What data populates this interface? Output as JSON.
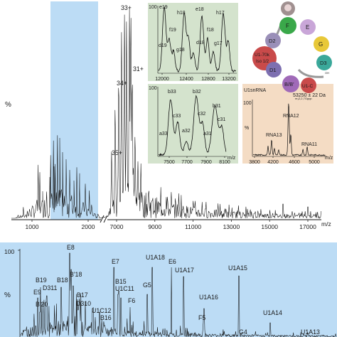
{
  "chart_data": [
    {
      "type": "line",
      "panel": "overview",
      "y_label": "%",
      "x_unit": "m/z",
      "x_ticks_left": [
        "1000",
        "2000"
      ],
      "x_ticks_right": [
        "7000",
        "9000",
        "11000",
        "13000",
        "15000",
        "17000"
      ],
      "peak_labels": [
        "33+",
        "31+",
        "34+",
        "35+"
      ],
      "highlight_region": [
        1380,
        2460
      ],
      "colors": {
        "highlight": "#bcdcf5",
        "trace": "#111111"
      }
    },
    {
      "type": "line",
      "panel": "inset-a",
      "y_top_label": "100",
      "x_ticks": [
        "12000",
        "12400",
        "12800",
        "13200"
      ],
      "peak_labels": [
        "e19",
        "h18",
        "e18",
        "h17",
        "f19",
        "f18",
        "d19",
        "g18",
        "d18",
        "g17"
      ],
      "colors": {
        "background": "#d4e3cd"
      }
    },
    {
      "type": "line",
      "panel": "inset-b",
      "y_top_label": "100",
      "x_unit": "m/z",
      "x_ticks": [
        "7500",
        "7700",
        "7900",
        "8100"
      ],
      "peak_labels": [
        "b33",
        "b32",
        "b31",
        "c33",
        "c32",
        "c31",
        "a33",
        "a32",
        "a31"
      ],
      "colors": {
        "background": "#d4e3cd"
      }
    },
    {
      "type": "line",
      "panel": "inset-c",
      "title": "U1snRNA",
      "mass_label": "53250 ± 22 Da",
      "y_top_label": "100",
      "y_label": "%",
      "x_unit": "m/z",
      "x_ticks": [
        "3800",
        "4200",
        "4600",
        "5000"
      ],
      "peak_labels": [
        "RNA12",
        "RNA13",
        "RNA11"
      ],
      "colors": {
        "background": "#f4dcc4"
      }
    },
    {
      "type": "line",
      "panel": "bottom",
      "y_top_label": "100",
      "y_label": "%",
      "peak_labels": [
        "E8",
        "E7",
        "E6",
        "U1A18",
        "U1A17",
        "U1A15",
        "B19",
        "B18",
        "B'18",
        "E9",
        "D311",
        "B17",
        "D310",
        "B'20",
        "U1C12",
        "B16",
        "B15",
        "U1C11",
        "G5",
        "F5",
        "U1A16",
        "F6",
        "U1A14",
        "G4",
        "U1A13"
      ],
      "colors": {
        "background": "#bcdcf5"
      }
    }
  ],
  "diagram": {
    "subunits": [
      "F",
      "E",
      "G",
      "D2",
      "U1-70k\nIso 1/2",
      "D1",
      "D3",
      "B/B'",
      "U1-C"
    ],
    "labels": [
      "OH",
      "m₃2,2,7Gppp"
    ],
    "colors": {
      "F": "#3aa84a",
      "E": "#c9a6d8",
      "G": "#e8c838",
      "D2": "#9a8fb8",
      "U1-70k": "#c94a4a",
      "D1": "#7d6fb0",
      "D3": "#3aa89a",
      "B/B'": "#a06ab8",
      "U1-C": "#c94a4a",
      "top": "#a09090"
    }
  }
}
